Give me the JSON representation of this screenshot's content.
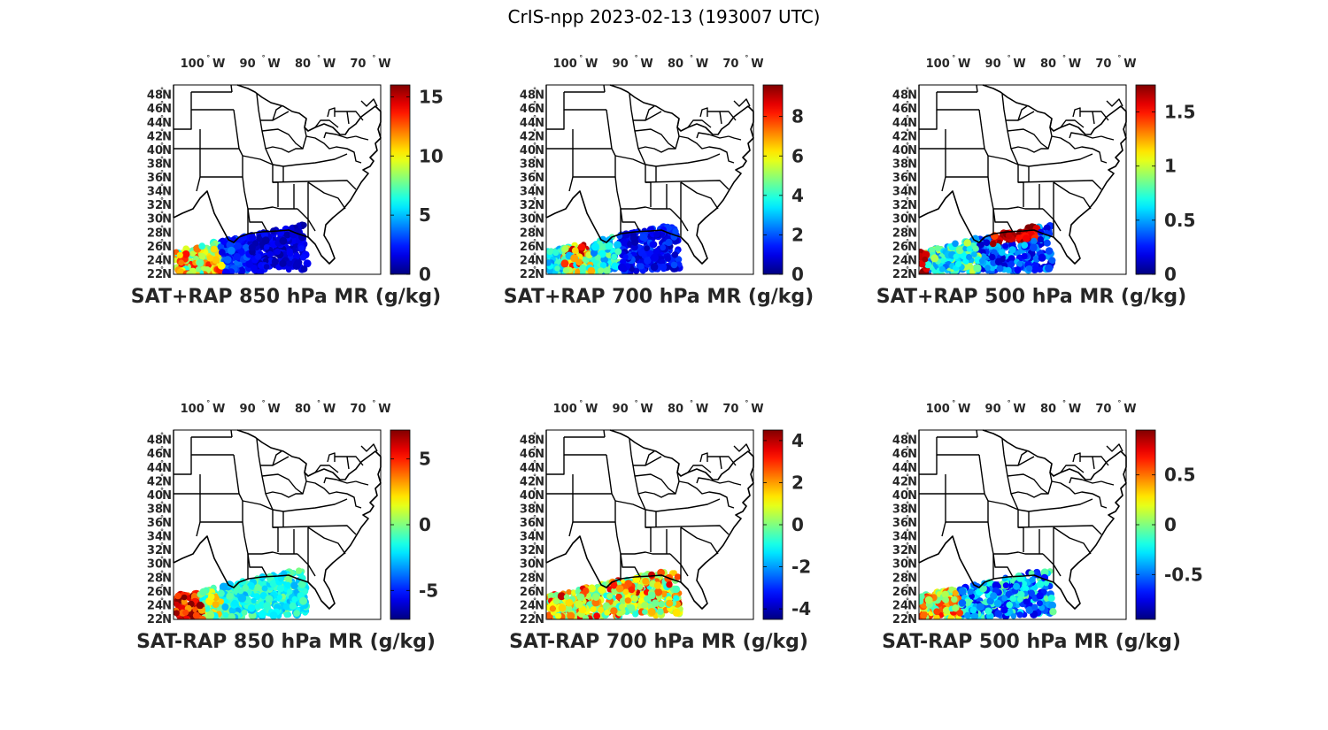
{
  "title": "CrIS-npp 2023-02-13 (193007 UTC)",
  "lat_labels": [
    "22",
    "24",
    "26",
    "28",
    "30",
    "32",
    "34",
    "36",
    "38",
    "40",
    "42",
    "44",
    "46",
    "48"
  ],
  "lon_labels": [
    "100",
    "90",
    "80",
    "70"
  ],
  "lat_hemi": "N",
  "lon_hemi": "W",
  "colormap": "jet",
  "panels": [
    {
      "title": "SAT+RAP 850 hPa MR (g/kg)",
      "clim": [
        0,
        16
      ],
      "ticks": [
        "0",
        "5",
        "10",
        "15"
      ],
      "tick_values": [
        0,
        5,
        10,
        15
      ],
      "field": "total850"
    },
    {
      "title": "SAT+RAP 700 hPa MR (g/kg)",
      "clim": [
        0,
        9.6
      ],
      "ticks": [
        "0",
        "2",
        "4",
        "6",
        "8"
      ],
      "tick_values": [
        0,
        2,
        4,
        6,
        8
      ],
      "field": "total700"
    },
    {
      "title": "SAT+RAP 500 hPa MR (g/kg)",
      "clim": [
        0,
        1.75
      ],
      "ticks": [
        "0",
        "0.5",
        "1",
        "1.5"
      ],
      "tick_values": [
        0,
        0.5,
        1,
        1.5
      ],
      "field": "total500"
    },
    {
      "title": "SAT-RAP 850 hPa MR (g/kg)",
      "clim": [
        -7.2,
        7.2
      ],
      "ticks": [
        "-5",
        "0",
        "5"
      ],
      "tick_values": [
        -5,
        0,
        5
      ],
      "field": "diff850"
    },
    {
      "title": "SAT-RAP 700 hPa MR (g/kg)",
      "clim": [
        -4.5,
        4.5
      ],
      "ticks": [
        "-4",
        "-2",
        "0",
        "2",
        "4"
      ],
      "tick_values": [
        -4,
        -2,
        0,
        2,
        4
      ],
      "field": "diff700"
    },
    {
      "title": "SAT-RAP 500 hPa MR (g/kg)",
      "clim": [
        -0.95,
        0.95
      ],
      "ticks": [
        "-0.5",
        "0",
        "0.5"
      ],
      "tick_values": [
        -0.5,
        0,
        0.5
      ],
      "field": "diff500"
    }
  ]
}
